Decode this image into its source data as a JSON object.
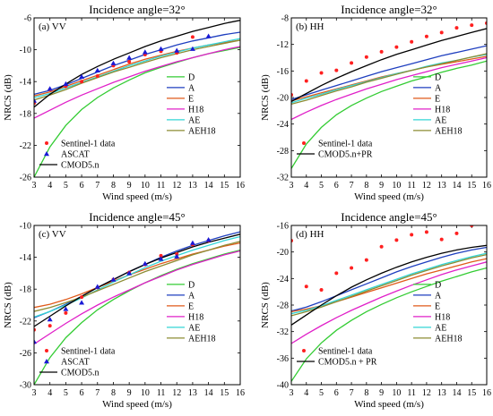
{
  "chart_data": [
    {
      "type": "line",
      "title": "Incidence angle=32°",
      "panel_label": "(a) VV",
      "xlabel": "Wind speed (m/s)",
      "ylabel": "NRCS (dB)",
      "xlim": [
        3,
        16
      ],
      "ylim": [
        -26,
        -6
      ],
      "xticks": [
        "3",
        "4",
        "5",
        "6",
        "7",
        "8",
        "9",
        "10",
        "11",
        "12",
        "13",
        "14",
        "15",
        "16"
      ],
      "yticks": [
        "-6",
        "-10",
        "-14",
        "-18",
        "-22",
        "-26"
      ],
      "x": [
        3,
        4,
        5,
        6,
        7,
        8,
        9,
        10,
        11,
        12,
        13,
        14,
        15,
        16
      ],
      "series": [
        {
          "name": "D",
          "color": "#33cc33",
          "values": [
            -26.0,
            -22.2,
            -19.5,
            -17.5,
            -16.0,
            -14.8,
            -13.8,
            -12.9,
            -12.2,
            -11.6,
            -11.0,
            -10.5,
            -10.1,
            -9.7
          ]
        },
        {
          "name": "A",
          "color": "#1f3fbf",
          "values": [
            -15.6,
            -15.1,
            -14.4,
            -13.6,
            -12.8,
            -12.0,
            -11.3,
            -10.6,
            -10.0,
            -9.4,
            -8.9,
            -8.5,
            -8.1,
            -7.8
          ]
        },
        {
          "name": "E",
          "color": "#e05a1a",
          "values": [
            -15.8,
            -15.3,
            -14.6,
            -13.9,
            -13.2,
            -12.5,
            -11.8,
            -11.2,
            -10.7,
            -10.2,
            -9.8,
            -9.4,
            -9.1,
            -8.8
          ]
        },
        {
          "name": "H18",
          "color": "#e020c8",
          "values": [
            -18.6,
            -17.6,
            -16.6,
            -15.7,
            -14.9,
            -14.1,
            -13.4,
            -12.7,
            -12.1,
            -11.5,
            -11.0,
            -10.5,
            -10.0,
            -9.6
          ]
        },
        {
          "name": "AE",
          "color": "#33d6d6",
          "values": [
            -16.0,
            -15.5,
            -14.8,
            -14.1,
            -13.4,
            -12.7,
            -12.0,
            -11.4,
            -10.8,
            -10.3,
            -9.8,
            -9.4,
            -9.0,
            -8.6
          ]
        },
        {
          "name": "AEH18",
          "color": "#8c8c33",
          "values": [
            -16.3,
            -15.7,
            -15.0,
            -14.2,
            -13.5,
            -12.8,
            -12.2,
            -11.6,
            -11.0,
            -10.5,
            -10.0,
            -9.6,
            -9.2,
            -8.8
          ]
        },
        {
          "name": "CMOD5.n",
          "color": "#000000",
          "values": [
            -17.2,
            -15.6,
            -14.3,
            -13.1,
            -12.1,
            -11.2,
            -10.4,
            -9.6,
            -8.9,
            -8.3,
            -7.7,
            -7.2,
            -6.7,
            -6.3
          ]
        }
      ],
      "points": [
        {
          "name": "Sentinel-1 data",
          "color": "#ff2020",
          "marker": "circle",
          "x": [
            3,
            4,
            5,
            6,
            7,
            8,
            9,
            10,
            11,
            12,
            13
          ],
          "y": [
            -16.7,
            -15.0,
            -14.6,
            -14.0,
            -13.3,
            -12.0,
            -11.5,
            -10.6,
            -10.2,
            -10.4,
            -8.4
          ]
        },
        {
          "name": "ASCAT",
          "color": "#1a1ad6",
          "marker": "triangle",
          "x": [
            3,
            4,
            5,
            6,
            7,
            8,
            9,
            10,
            11,
            12,
            13,
            14
          ],
          "y": [
            -16.4,
            -14.9,
            -14.3,
            -13.4,
            -12.6,
            -11.7,
            -11.0,
            -10.3,
            -9.9,
            -10.1,
            -9.9,
            -8.3
          ]
        }
      ],
      "legend_lines": [
        "D",
        "A",
        "E",
        "H18",
        "AE",
        "AEH18"
      ],
      "legend_data": [
        "Sentinel-1 data",
        "ASCAT",
        "CMOD5.n"
      ]
    },
    {
      "type": "line",
      "title": "Incidence angle=32°",
      "panel_label": "(b) HH",
      "xlabel": "Wind speed (m/s)",
      "ylabel": "NRCS (dB)",
      "xlim": [
        3,
        16
      ],
      "ylim": [
        -32,
        -8
      ],
      "xticks": [
        "3",
        "4",
        "5",
        "6",
        "7",
        "8",
        "9",
        "10",
        "11",
        "12",
        "13",
        "14",
        "15",
        "16"
      ],
      "yticks": [
        "-8",
        "-12",
        "-16",
        "-20",
        "-24",
        "-28",
        "-32"
      ],
      "x": [
        3,
        4,
        5,
        6,
        7,
        8,
        9,
        10,
        11,
        12,
        13,
        14,
        15,
        16
      ],
      "series": [
        {
          "name": "D",
          "color": "#33cc33",
          "values": [
            -30.7,
            -27.0,
            -24.5,
            -22.6,
            -21.2,
            -20.1,
            -19.1,
            -18.3,
            -17.5,
            -16.9,
            -16.2,
            -15.6,
            -15.1,
            -14.5
          ]
        },
        {
          "name": "A",
          "color": "#1f3fbf",
          "values": [
            -20.3,
            -19.6,
            -18.9,
            -18.2,
            -17.5,
            -16.8,
            -16.1,
            -15.5,
            -14.9,
            -14.3,
            -13.7,
            -13.2,
            -12.7,
            -12.2
          ]
        },
        {
          "name": "E",
          "color": "#e05a1a",
          "values": [
            -20.5,
            -19.9,
            -19.3,
            -18.7,
            -18.1,
            -17.5,
            -16.9,
            -16.4,
            -15.9,
            -15.4,
            -15.0,
            -14.6,
            -14.2,
            -13.8
          ]
        },
        {
          "name": "H18",
          "color": "#e020c8",
          "values": [
            -23.3,
            -22.2,
            -21.2,
            -20.3,
            -19.5,
            -18.7,
            -18.0,
            -17.3,
            -16.7,
            -16.1,
            -15.5,
            -15.0,
            -14.5,
            -14.0
          ]
        },
        {
          "name": "AE",
          "color": "#33d6d6",
          "values": [
            -20.8,
            -20.1,
            -19.5,
            -18.8,
            -18.2,
            -17.6,
            -17.0,
            -16.4,
            -15.9,
            -15.3,
            -14.8,
            -14.4,
            -13.9,
            -13.5
          ]
        },
        {
          "name": "AEH18",
          "color": "#8c8c33",
          "values": [
            -21.0,
            -20.4,
            -19.7,
            -19.0,
            -18.4,
            -17.7,
            -17.1,
            -16.5,
            -15.9,
            -15.4,
            -14.9,
            -14.4,
            -13.9,
            -13.4
          ]
        },
        {
          "name": "CMOD5.n+PR",
          "color": "#000000",
          "values": [
            -20.6,
            -19.4,
            -18.2,
            -17.1,
            -16.1,
            -15.2,
            -14.3,
            -13.5,
            -12.8,
            -12.1,
            -11.4,
            -10.8,
            -10.2,
            -9.6
          ]
        }
      ],
      "points": [
        {
          "name": "Sentinel-1 data",
          "color": "#ff2020",
          "marker": "circle",
          "x": [
            3,
            4,
            5,
            6,
            7,
            8,
            9,
            10,
            11,
            12,
            13,
            14,
            15,
            16
          ],
          "y": [
            -19.6,
            -17.5,
            -16.3,
            -15.9,
            -14.8,
            -13.9,
            -13.1,
            -12.4,
            -11.6,
            -10.8,
            -10.2,
            -9.5,
            -9.1,
            -8.8
          ]
        }
      ],
      "legend_lines": [
        "D",
        "A",
        "E",
        "H18",
        "AE",
        "AEH18"
      ],
      "legend_data": [
        "Sentinel-1 data",
        "CMOD5.n+PR"
      ]
    },
    {
      "type": "line",
      "title": "Incidence angle=45°",
      "panel_label": "(c) VV",
      "xlabel": "Wind speed (m/s)",
      "ylabel": "NRCS (dB)",
      "xlim": [
        3,
        16
      ],
      "ylim": [
        -30,
        -10
      ],
      "xticks": [
        "3",
        "4",
        "5",
        "6",
        "7",
        "8",
        "9",
        "10",
        "11",
        "12",
        "13",
        "14",
        "15",
        "16"
      ],
      "yticks": [
        "-10",
        "-14",
        "-18",
        "-22",
        "-26",
        "-30"
      ],
      "x": [
        3,
        4,
        5,
        6,
        7,
        8,
        9,
        10,
        11,
        12,
        13,
        14,
        15,
        16
      ],
      "series": [
        {
          "name": "D",
          "color": "#33cc33",
          "values": [
            -30.0,
            -26.6,
            -24.1,
            -22.2,
            -20.6,
            -19.3,
            -18.2,
            -17.2,
            -16.3,
            -15.5,
            -14.8,
            -14.2,
            -13.6,
            -13.1
          ]
        },
        {
          "name": "A",
          "color": "#1f3fbf",
          "values": [
            -21.6,
            -20.8,
            -19.9,
            -18.9,
            -17.8,
            -16.8,
            -15.8,
            -14.9,
            -14.0,
            -13.2,
            -12.5,
            -11.9,
            -11.3,
            -10.8
          ]
        },
        {
          "name": "E",
          "color": "#e05a1a",
          "values": [
            -20.3,
            -19.9,
            -19.3,
            -18.6,
            -17.8,
            -17.0,
            -16.2,
            -15.5,
            -14.8,
            -14.2,
            -13.6,
            -13.1,
            -12.6,
            -12.2
          ]
        },
        {
          "name": "H18",
          "color": "#e020c8",
          "values": [
            -24.9,
            -23.6,
            -22.3,
            -21.1,
            -20.0,
            -19.0,
            -18.1,
            -17.2,
            -16.4,
            -15.6,
            -14.9,
            -14.3,
            -13.7,
            -13.2
          ]
        },
        {
          "name": "AE",
          "color": "#33d6d6",
          "values": [
            -21.5,
            -20.8,
            -20.0,
            -19.1,
            -18.1,
            -17.1,
            -16.2,
            -15.3,
            -14.5,
            -13.8,
            -13.1,
            -12.5,
            -11.9,
            -11.4
          ]
        },
        {
          "name": "AEH18",
          "color": "#8c8c33",
          "values": [
            -20.8,
            -20.3,
            -19.7,
            -19.0,
            -18.2,
            -17.4,
            -16.6,
            -15.8,
            -15.1,
            -14.4,
            -13.7,
            -13.1,
            -12.5,
            -12.0
          ]
        },
        {
          "name": "CMOD5.n",
          "color": "#000000",
          "values": [
            -22.7,
            -21.4,
            -20.1,
            -18.9,
            -17.8,
            -16.8,
            -15.8,
            -14.9,
            -14.1,
            -13.4,
            -12.7,
            -12.1,
            -11.6,
            -11.1
          ]
        }
      ],
      "points": [
        {
          "name": "Sentinel-1 data",
          "color": "#ff2020",
          "marker": "circle",
          "x": [
            3,
            4,
            5,
            6,
            7,
            8,
            9,
            10,
            11,
            12,
            13,
            14
          ],
          "y": [
            -23.1,
            -22.6,
            -21.0,
            -19.0,
            -17.8,
            -16.8,
            -15.9,
            -14.9,
            -13.8,
            -13.6,
            -12.4,
            -11.9
          ]
        },
        {
          "name": "ASCAT",
          "color": "#1a1ad6",
          "marker": "triangle",
          "x": [
            3,
            4,
            5,
            6,
            7,
            8,
            9,
            10,
            11,
            12,
            13,
            14
          ],
          "y": [
            -24.6,
            -21.8,
            -20.5,
            -19.7,
            -17.7,
            -16.8,
            -16.0,
            -14.8,
            -14.2,
            -13.9,
            -12.2,
            -11.8
          ]
        }
      ],
      "legend_lines": [
        "D",
        "A",
        "E",
        "H18",
        "AE",
        "AEH18"
      ],
      "legend_data": [
        "Sentinel-1 data",
        "ASCAT",
        "CMOD5.n"
      ]
    },
    {
      "type": "line",
      "title": "Incidence angle=45°",
      "panel_label": "(d) HH",
      "xlabel": "Wind speed (m/s)",
      "ylabel": "NRCS (dB)",
      "xlim": [
        3,
        16
      ],
      "ylim": [
        -40,
        -16
      ],
      "xticks": [
        "3",
        "4",
        "5",
        "6",
        "7",
        "8",
        "9",
        "10",
        "11",
        "12",
        "13",
        "14",
        "15",
        "16"
      ],
      "yticks": [
        "-16",
        "-20",
        "-24",
        "-28",
        "-32",
        "-36",
        "-40"
      ],
      "x": [
        3,
        4,
        5,
        6,
        7,
        8,
        9,
        10,
        11,
        12,
        13,
        14,
        15,
        16
      ],
      "series": [
        {
          "name": "D",
          "color": "#33cc33",
          "values": [
            -39.5,
            -36.1,
            -33.7,
            -31.8,
            -30.3,
            -29.0,
            -27.9,
            -26.9,
            -26.0,
            -25.2,
            -24.4,
            -23.7,
            -23.0,
            -22.4
          ]
        },
        {
          "name": "A",
          "color": "#1f3fbf",
          "values": [
            -28.9,
            -28.3,
            -27.5,
            -26.6,
            -25.7,
            -24.8,
            -23.9,
            -23.0,
            -22.2,
            -21.5,
            -20.8,
            -20.2,
            -19.7,
            -19.3
          ]
        },
        {
          "name": "E",
          "color": "#e05a1a",
          "values": [
            -29.0,
            -28.6,
            -28.1,
            -27.5,
            -26.8,
            -26.1,
            -25.4,
            -24.7,
            -24.0,
            -23.3,
            -22.7,
            -22.1,
            -21.5,
            -21.0
          ]
        },
        {
          "name": "H18",
          "color": "#e020c8",
          "values": [
            -33.8,
            -32.4,
            -31.1,
            -29.9,
            -28.8,
            -27.8,
            -26.8,
            -25.9,
            -25.0,
            -24.2,
            -23.4,
            -22.7,
            -22.1,
            -21.5
          ]
        },
        {
          "name": "AE",
          "color": "#33d6d6",
          "values": [
            -29.3,
            -28.8,
            -28.1,
            -27.3,
            -26.5,
            -25.7,
            -24.9,
            -24.1,
            -23.3,
            -22.6,
            -21.9,
            -21.3,
            -20.7,
            -20.2
          ]
        },
        {
          "name": "AEH18",
          "color": "#8c8c33",
          "values": [
            -29.6,
            -29.0,
            -28.3,
            -27.5,
            -26.7,
            -25.9,
            -25.1,
            -24.3,
            -23.5,
            -22.8,
            -22.1,
            -21.5,
            -20.9,
            -20.4
          ]
        },
        {
          "name": "CMOD5.n + PR",
          "color": "#000000",
          "values": [
            -31.0,
            -29.5,
            -28.0,
            -26.6,
            -25.3,
            -24.2,
            -23.2,
            -22.3,
            -21.5,
            -20.8,
            -20.2,
            -19.7,
            -19.3,
            -19.0
          ]
        }
      ],
      "points": [
        {
          "name": "Sentinel-1 data",
          "color": "#ff2020",
          "marker": "circle",
          "x": [
            3,
            4,
            5,
            6,
            7,
            8,
            9,
            10,
            11,
            12,
            13,
            14,
            15
          ],
          "y": [
            -18.3,
            -25.2,
            -25.7,
            -23.2,
            -22.4,
            -21.2,
            -19.2,
            -18.2,
            -17.4,
            -17.0,
            -18.1,
            -17.2,
            -16.0
          ]
        }
      ],
      "legend_lines": [
        "D",
        "A",
        "E",
        "H18",
        "AE",
        "AEH18"
      ],
      "legend_data": [
        "Sentinel-1 data",
        "CMOD5.n + PR"
      ]
    }
  ]
}
